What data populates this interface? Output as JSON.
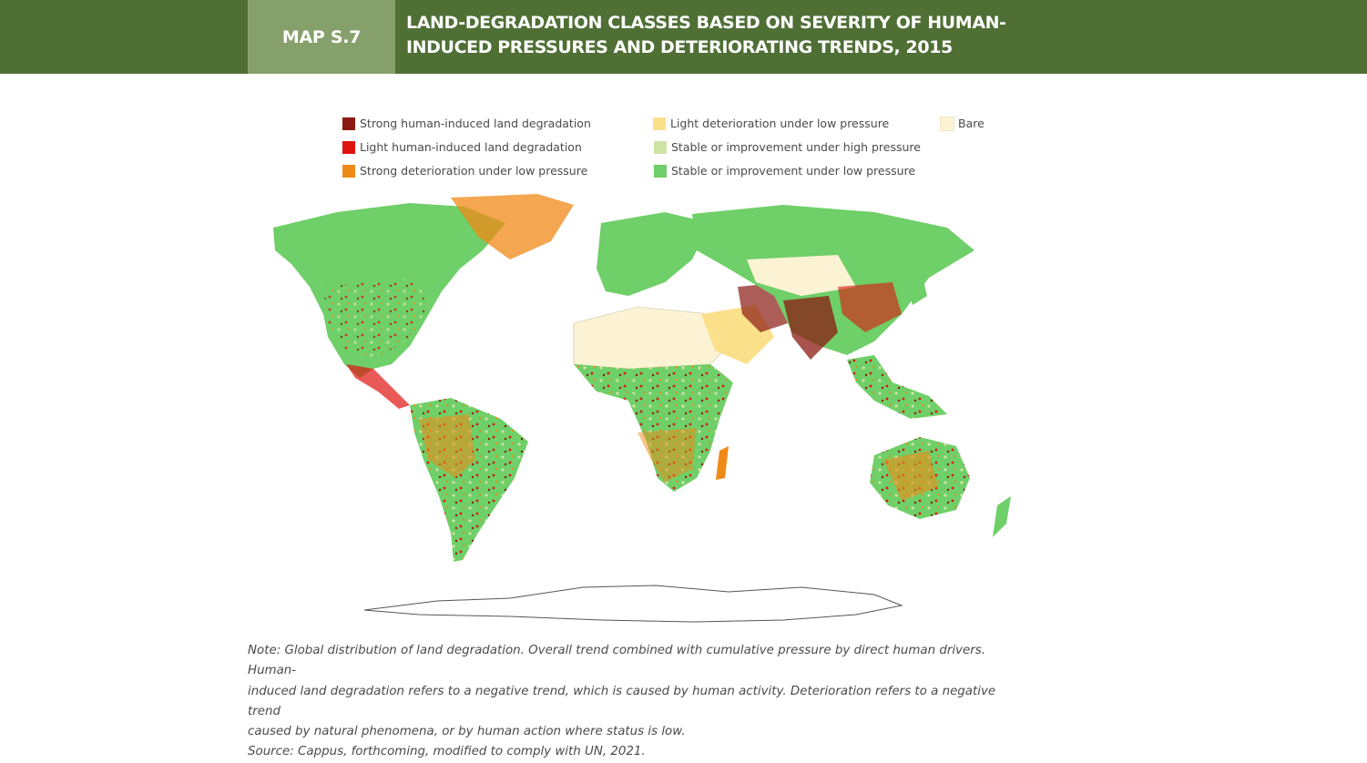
{
  "header": {
    "badge": "MAP S.7",
    "title_line1": "LAND-DEGRADATION CLASSES BASED ON SEVERITY OF HUMAN-",
    "title_line2": "INDUCED PRESSURES AND DETERIORATING TRENDS, 2015"
  },
  "legend": [
    {
      "label": "Strong human-induced land degradation",
      "color": "#8b1a12"
    },
    {
      "label": "Light human-induced land degradation",
      "color": "#e0120f"
    },
    {
      "label": "Strong deterioration under low pressure",
      "color": "#f08a16"
    },
    {
      "label": "Light deterioration under low pressure",
      "color": "#fbe08c"
    },
    {
      "label": "Stable or improvement under high pressure",
      "color": "#cfe3a6"
    },
    {
      "label": "Stable or improvement under low pressure",
      "color": "#6fcf68"
    },
    {
      "label": "Bare",
      "color": "#fbf3d4"
    }
  ],
  "note": {
    "line1": "Note: Global distribution of land degradation. Overall trend combined with cumulative pressure by direct human drivers. Human-",
    "line2": "induced land degradation refers to a negative trend, which is caused by human activity. Deterioration refers to a negative trend",
    "line3": "caused by natural phenomena, or by human action where status is low.",
    "source": "Source: Cappus, forthcoming, modified to comply with UN, 2021."
  }
}
